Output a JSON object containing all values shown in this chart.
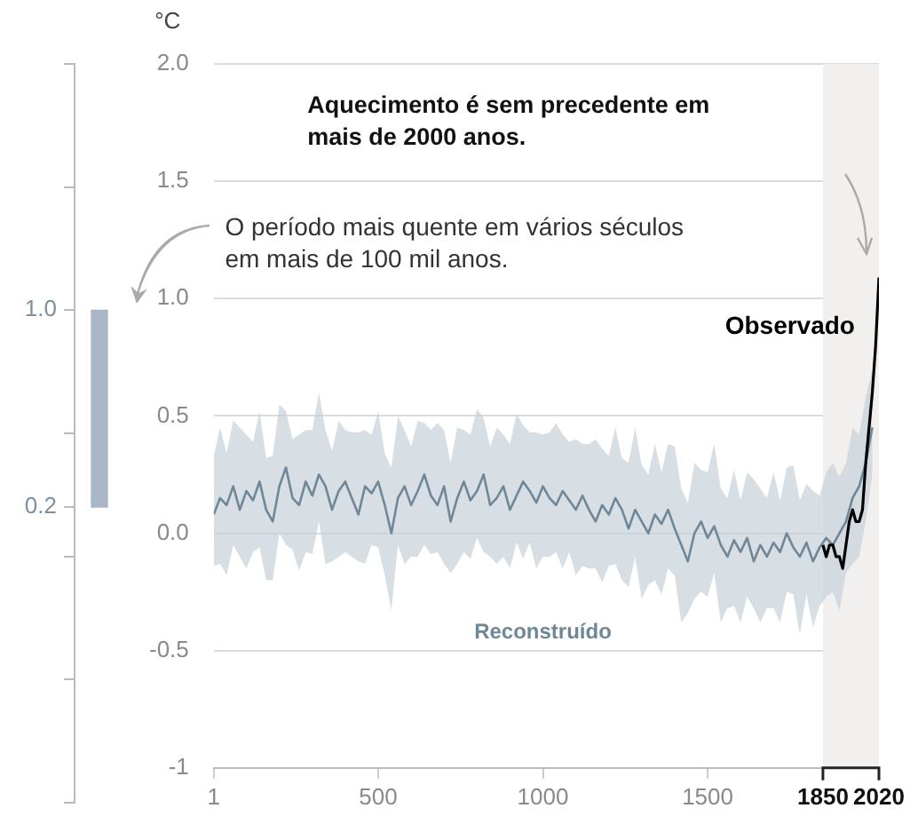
{
  "chart_data": [
    {
      "type": "line",
      "ylabel": "°C",
      "xlim": [
        1,
        2020
      ],
      "xticks": [
        1,
        500,
        1000,
        1500,
        1850,
        2020
      ],
      "ylim": [
        -1,
        2
      ],
      "yticks": [
        {
          "value": 2,
          "label": "2.0"
        },
        1.5,
        {
          "value": 1,
          "label": "1.0"
        },
        0.5,
        {
          "value": 0,
          "label": "0.0"
        },
        -0.5,
        -1
      ],
      "grid": "y",
      "legend": false,
      "marker": "none",
      "bands": [
        {
          "axis": "x",
          "from": 1850,
          "to": 2020,
          "color": "#f1f0ef"
        }
      ],
      "annotations": [
        "Aquecimento é sem precedente em mais de 2000 anos.",
        "O período mais quente em vários séculos em mais de 100 mil anos."
      ],
      "series": [
        {
          "name": "Reconstruído",
          "color": "#6f8797",
          "x": [
            1,
            20,
            40,
            60,
            80,
            100,
            120,
            140,
            160,
            180,
            200,
            220,
            240,
            260,
            280,
            300,
            320,
            340,
            360,
            380,
            400,
            420,
            440,
            460,
            480,
            500,
            520,
            540,
            560,
            580,
            600,
            620,
            640,
            660,
            680,
            700,
            720,
            740,
            760,
            780,
            800,
            820,
            840,
            860,
            880,
            900,
            920,
            940,
            960,
            980,
            1000,
            1020,
            1040,
            1060,
            1080,
            1100,
            1120,
            1140,
            1160,
            1180,
            1200,
            1220,
            1240,
            1260,
            1280,
            1300,
            1320,
            1340,
            1360,
            1380,
            1400,
            1420,
            1440,
            1460,
            1480,
            1500,
            1520,
            1540,
            1560,
            1580,
            1600,
            1620,
            1640,
            1660,
            1680,
            1700,
            1720,
            1740,
            1760,
            1780,
            1800,
            1820,
            1840,
            1860,
            1880,
            1900,
            1920,
            1940,
            1960,
            1980,
            2000
          ],
          "values": [
            0.08,
            0.15,
            0.12,
            0.2,
            0.1,
            0.18,
            0.14,
            0.22,
            0.1,
            0.05,
            0.2,
            0.28,
            0.15,
            0.12,
            0.22,
            0.16,
            0.25,
            0.2,
            0.1,
            0.18,
            0.22,
            0.15,
            0.08,
            0.2,
            0.17,
            0.22,
            0.12,
            0,
            0.15,
            0.2,
            0.12,
            0.18,
            0.25,
            0.16,
            0.12,
            0.2,
            0.05,
            0.15,
            0.22,
            0.14,
            0.18,
            0.25,
            0.12,
            0.15,
            0.2,
            0.1,
            0.16,
            0.22,
            0.18,
            0.13,
            0.2,
            0.15,
            0.12,
            0.18,
            0.14,
            0.1,
            0.16,
            0.1,
            0.05,
            0.12,
            0.08,
            0.15,
            0.1,
            0.02,
            0.1,
            0.05,
            0,
            0.08,
            0.04,
            0.1,
            0.02,
            -0.05,
            -0.12,
            0,
            0.05,
            -0.02,
            0.03,
            -0.05,
            -0.1,
            -0.03,
            -0.08,
            -0.02,
            -0.12,
            -0.05,
            -0.1,
            -0.04,
            -0.08,
            0,
            -0.06,
            -0.1,
            -0.04,
            -0.12,
            -0.06,
            -0.02,
            -0.05,
            0,
            0.05,
            0.15,
            0.2,
            0.3,
            0.45
          ],
          "upper": [
            0.33,
            0.45,
            0.34,
            0.48,
            0.45,
            0.42,
            0.39,
            0.52,
            0.32,
            0.33,
            0.55,
            0.52,
            0.4,
            0.42,
            0.44,
            0.44,
            0.6,
            0.44,
            0.35,
            0.48,
            0.44,
            0.43,
            0.43,
            0.44,
            0.42,
            0.52,
            0.34,
            0.28,
            0.5,
            0.44,
            0.37,
            0.48,
            0.47,
            0.44,
            0.47,
            0.44,
            0.3,
            0.45,
            0.44,
            0.42,
            0.53,
            0.49,
            0.37,
            0.45,
            0.42,
            0.38,
            0.51,
            0.46,
            0.43,
            0.43,
            0.42,
            0.43,
            0.47,
            0.42,
            0.39,
            0.4,
            0.38,
            0.38,
            0.4,
            0.36,
            0.33,
            0.45,
            0.32,
            0.3,
            0.45,
            0.29,
            0.25,
            0.38,
            0.26,
            0.38,
            0.37,
            0.19,
            0.13,
            0.3,
            0.27,
            0.26,
            0.38,
            0.19,
            0.15,
            0.27,
            0.14,
            0.26,
            0.23,
            0.19,
            0.15,
            0.26,
            0.14,
            0.28,
            0.29,
            0.14,
            0.21,
            0.18,
            0.16,
            0.26,
            0.3,
            0.24,
            0.3,
            0.45,
            0.42,
            0.58,
            0.7
          ],
          "lower": [
            -0.14,
            -0.13,
            -0.18,
            -0.05,
            -0.1,
            -0.15,
            -0.08,
            -0.06,
            -0.2,
            -0.2,
            0,
            -0.05,
            -0.07,
            -0.16,
            -0.08,
            -0.09,
            0.05,
            -0.13,
            -0.12,
            -0.1,
            -0.08,
            -0.1,
            -0.12,
            -0.13,
            -0.05,
            -0.06,
            -0.18,
            -0.33,
            -0.05,
            -0.13,
            -0.1,
            -0.1,
            -0.05,
            -0.09,
            -0.08,
            -0.13,
            -0.17,
            -0.13,
            -0.08,
            -0.11,
            -0.02,
            -0.08,
            -0.1,
            -0.13,
            -0.1,
            -0.15,
            -0.04,
            -0.11,
            -0.04,
            -0.15,
            -0.1,
            -0.1,
            -0.08,
            -0.15,
            -0.08,
            -0.18,
            -0.14,
            -0.15,
            -0.15,
            -0.21,
            -0.14,
            -0.13,
            -0.2,
            -0.23,
            -0.1,
            -0.28,
            -0.22,
            -0.2,
            -0.26,
            -0.15,
            -0.18,
            -0.38,
            -0.34,
            -0.28,
            -0.25,
            -0.27,
            -0.17,
            -0.38,
            -0.32,
            -0.31,
            -0.38,
            -0.27,
            -0.32,
            -0.38,
            -0.32,
            -0.32,
            -0.38,
            -0.25,
            -0.26,
            -0.43,
            -0.26,
            -0.4,
            -0.31,
            -0.27,
            -0.25,
            -0.33,
            -0.17,
            -0.13,
            -0.1,
            0.05,
            0.25
          ]
        },
        {
          "name": "Observado",
          "color": "#000000",
          "x": [
            1850,
            1860,
            1870,
            1880,
            1890,
            1900,
            1910,
            1920,
            1930,
            1940,
            1950,
            1960,
            1970,
            1980,
            1990,
            2000,
            2010,
            2020
          ],
          "values": [
            -0.05,
            -0.1,
            -0.05,
            -0.05,
            -0.1,
            -0.1,
            -0.15,
            -0.05,
            0.05,
            0.1,
            0.05,
            0.05,
            0.1,
            0.3,
            0.45,
            0.6,
            0.8,
            1.09
          ]
        }
      ]
    },
    {
      "type": "bar",
      "categories": [
        null
      ],
      "base": [
        0.2
      ],
      "values": [
        0.8
      ],
      "color": "#a9b7c4",
      "ylim": [
        -1,
        2
      ],
      "yticks": [
        {
          "value": 2,
          "label": null
        },
        {
          "value": 1.5,
          "label": null
        },
        {
          "value": 1,
          "label": "1.0"
        },
        {
          "value": 0.5,
          "label": null
        },
        {
          "value": 0.2,
          "label": "0.2"
        },
        {
          "value": 0,
          "label": null
        },
        {
          "value": -0.5,
          "label": null
        },
        {
          "value": -1,
          "label": null
        }
      ],
      "tick_labels": "y",
      "grid": false,
      "legend": false
    }
  ]
}
